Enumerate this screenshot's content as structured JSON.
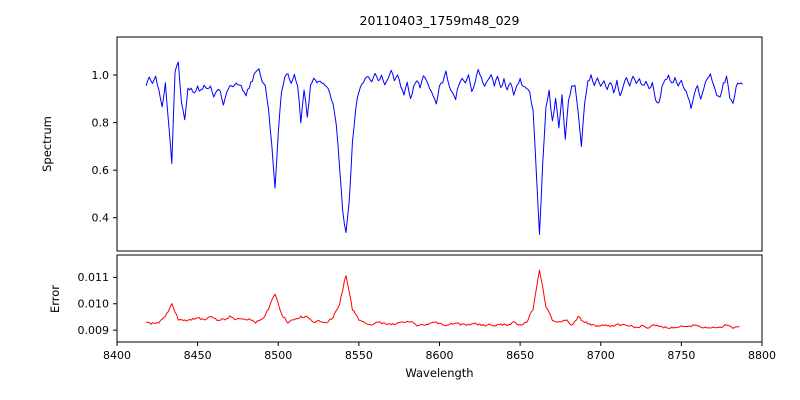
{
  "title": "20110403_1759m48_029",
  "xlabel": "Wavelength",
  "axes": {
    "xlim": [
      8400,
      8800
    ],
    "xticks": [
      8400,
      8450,
      8500,
      8550,
      8600,
      8650,
      8700,
      8750,
      8800
    ],
    "xtick_labels": [
      "8400",
      "8450",
      "8500",
      "8550",
      "8600",
      "8650",
      "8700",
      "8750",
      "8800"
    ],
    "frame_color": "#000000",
    "background": "#ffffff"
  },
  "chart_data": [
    {
      "type": "line",
      "name": "spectrum",
      "ylabel": "Spectrum",
      "color": "#0000ff",
      "ylim": [
        0.26,
        1.16
      ],
      "yticks": [
        0.4,
        0.6,
        0.8,
        1.0
      ],
      "ytick_labels": [
        "0.4",
        "0.6",
        "0.8",
        "1.0"
      ],
      "x_start": 8418,
      "x_step": 2,
      "noise_amplitude": 0.008,
      "noise_seed": 42,
      "y": [
        0.95,
        0.99,
        0.96,
        1.0,
        0.93,
        0.87,
        0.96,
        0.8,
        0.63,
        1.02,
        1.05,
        0.88,
        0.81,
        0.95,
        0.94,
        0.92,
        0.95,
        0.93,
        0.96,
        0.94,
        0.95,
        0.91,
        0.94,
        0.93,
        0.88,
        0.93,
        0.96,
        0.95,
        0.97,
        0.96,
        0.94,
        0.92,
        0.95,
        0.98,
        1.02,
        1.03,
        0.97,
        0.95,
        0.86,
        0.7,
        0.52,
        0.76,
        0.93,
        0.99,
        1.0,
        0.97,
        1.0,
        0.96,
        0.8,
        0.94,
        0.82,
        0.95,
        0.99,
        0.96,
        0.98,
        0.96,
        0.95,
        0.92,
        0.88,
        0.79,
        0.62,
        0.42,
        0.33,
        0.47,
        0.71,
        0.86,
        0.93,
        0.96,
        0.98,
        1.0,
        0.97,
        1.01,
        0.97,
        1.0,
        0.96,
        0.99,
        1.02,
        0.98,
        1.0,
        0.95,
        0.91,
        0.97,
        0.9,
        0.95,
        0.98,
        0.95,
        1.0,
        0.97,
        0.94,
        0.92,
        0.88,
        0.95,
        0.97,
        1.01,
        0.95,
        0.92,
        0.9,
        0.96,
        0.99,
        0.96,
        1.0,
        0.93,
        0.97,
        1.03,
        0.99,
        0.95,
        0.98,
        1.0,
        0.96,
        0.99,
        0.95,
        0.98,
        0.94,
        0.97,
        0.92,
        0.96,
        0.98,
        0.95,
        0.95,
        0.92,
        0.85,
        0.6,
        0.33,
        0.62,
        0.86,
        0.93,
        0.8,
        0.9,
        0.78,
        0.92,
        0.73,
        0.9,
        0.95,
        0.96,
        0.84,
        0.7,
        0.88,
        0.97,
        1.0,
        0.95,
        0.99,
        0.96,
        0.98,
        0.94,
        0.97,
        0.93,
        0.97,
        0.91,
        0.96,
        0.99,
        0.95,
        1.0,
        0.97,
        0.99,
        0.95,
        0.98,
        0.94,
        0.97,
        0.9,
        0.88,
        0.95,
        0.98,
        1.0,
        0.96,
        0.99,
        0.95,
        0.98,
        0.94,
        0.91,
        0.86,
        0.92,
        0.96,
        0.9,
        0.95,
        0.98,
        1.0,
        0.96,
        0.92,
        0.9,
        0.96,
        0.99,
        0.91,
        0.88,
        0.95,
        0.97,
        0.96
      ]
    },
    {
      "type": "line",
      "name": "error",
      "ylabel": "Error",
      "color": "#ff0000",
      "ylim": [
        0.00855,
        0.01185
      ],
      "yticks": [
        0.009,
        0.01,
        0.011
      ],
      "ytick_labels": [
        "0.009",
        "0.010",
        "0.011"
      ],
      "x_start": 8418,
      "x_step": 4,
      "noise_amplitude": 4e-05,
      "noise_seed": 7,
      "y": [
        0.0093,
        0.00925,
        0.0093,
        0.0095,
        0.01,
        0.0094,
        0.00935,
        0.0094,
        0.00945,
        0.0094,
        0.0095,
        0.0094,
        0.0094,
        0.0095,
        0.0094,
        0.00945,
        0.0094,
        0.0093,
        0.0094,
        0.0098,
        0.0104,
        0.0096,
        0.0093,
        0.0094,
        0.0095,
        0.0095,
        0.0093,
        0.00935,
        0.0093,
        0.0095,
        0.01,
        0.0111,
        0.0098,
        0.0094,
        0.00925,
        0.0092,
        0.0093,
        0.00925,
        0.0092,
        0.00925,
        0.0093,
        0.00935,
        0.0092,
        0.0092,
        0.00925,
        0.0093,
        0.0092,
        0.0092,
        0.0093,
        0.0092,
        0.0092,
        0.00925,
        0.0092,
        0.0092,
        0.0092,
        0.0092,
        0.0092,
        0.0093,
        0.0092,
        0.0093,
        0.0098,
        0.0113,
        0.0099,
        0.0094,
        0.0093,
        0.0094,
        0.0092,
        0.0095,
        0.0093,
        0.0092,
        0.00915,
        0.0092,
        0.00915,
        0.0092,
        0.0092,
        0.00915,
        0.0091,
        0.00915,
        0.0091,
        0.0092,
        0.0091,
        0.0091,
        0.0091,
        0.00915,
        0.0091,
        0.0092,
        0.0091,
        0.0091,
        0.0091,
        0.0091,
        0.0092,
        0.0091,
        0.0091
      ]
    }
  ]
}
